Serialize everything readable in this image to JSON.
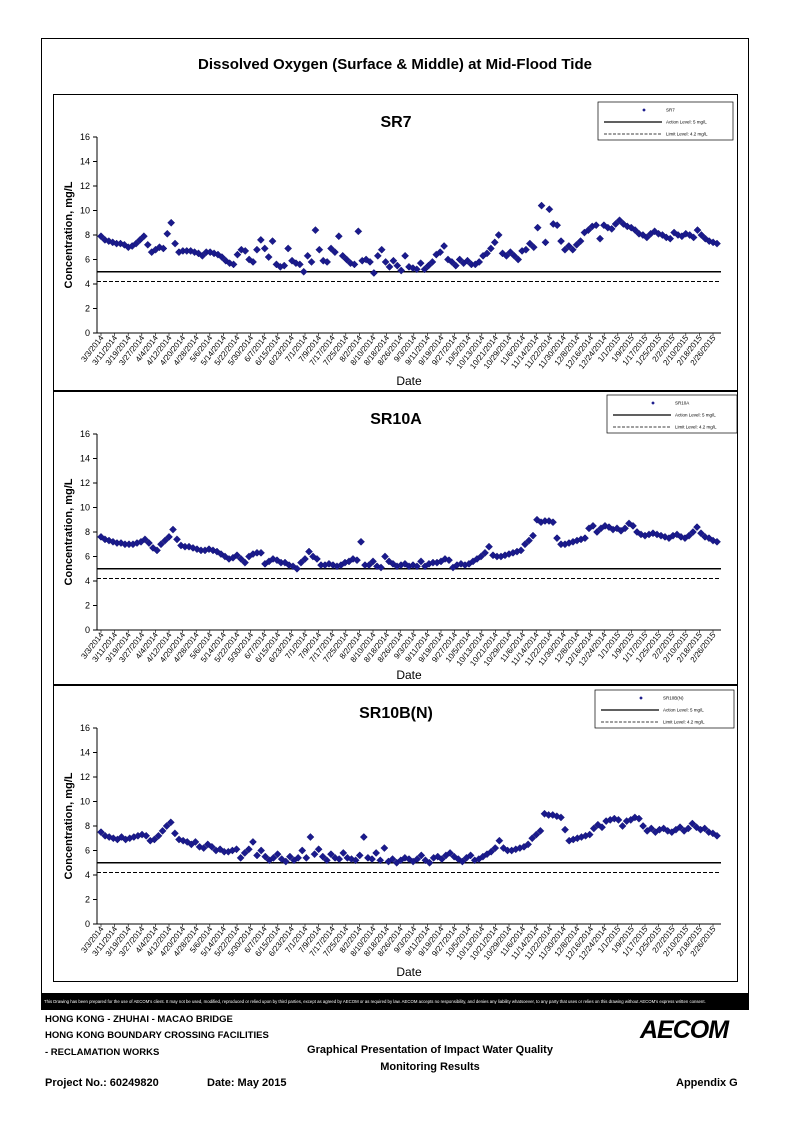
{
  "main_title": "Dissolved Oxygen (Surface & Middle) at Mid-Flood Tide",
  "disclaimer": "This Drawing has been prepared for the use of AECOM's client. It may not be used, modified, reproduced or relied upon by third parties, except as agreed by AECOM or as required by law. AECOM accepts no responsibility, and denies any liability whatsoever, to any party that uses or relies on this drawing without AECOM's express written consent.",
  "footer": {
    "line1": "HONG KONG - ZHUHAI - MACAO BRIDGE",
    "line2": "HONG KONG BOUNDARY CROSSING FACILITIES",
    "line3": "- RECLAMATION WORKS",
    "center_line1": "Graphical Presentation of Impact Water Quality",
    "center_line2": "Monitoring Results",
    "logo": "AECOM",
    "project": "Project No.: 60249820",
    "date": "Date: May 2015",
    "appendix": "Appendix G"
  },
  "chart_data": [
    {
      "type": "scatter",
      "title": "SR7",
      "xlabel": "Date",
      "ylabel": "Concentration, mg/L",
      "ylim": [
        0,
        16
      ],
      "yticks": [
        0,
        2,
        4,
        6,
        8,
        10,
        12,
        14,
        16
      ],
      "xticks": [
        "3/3/2014",
        "3/11/2014",
        "3/19/2014",
        "3/27/2014",
        "4/4/2014",
        "4/12/2014",
        "4/20/2014",
        "4/28/2014",
        "5/6/2014",
        "5/14/2014",
        "5/22/2014",
        "5/30/2014",
        "6/7/2014",
        "6/15/2014",
        "6/23/2014",
        "7/1/2014",
        "7/9/2014",
        "7/17/2014",
        "7/25/2014",
        "8/2/2014",
        "8/10/2014",
        "8/18/2014",
        "8/26/2014",
        "9/3/2014",
        "9/11/2014",
        "9/19/2014",
        "9/27/2014",
        "10/5/2014",
        "10/13/2014",
        "10/21/2014",
        "10/29/2014",
        "11/6/2014",
        "11/14/2014",
        "11/22/2014",
        "11/30/2014",
        "12/8/2014",
        "12/16/2014",
        "12/24/2014",
        "1/1/2015",
        "1/9/2015",
        "1/17/2015",
        "1/25/2015",
        "2/2/2015",
        "2/10/2015",
        "2/18/2015",
        "2/26/2015"
      ],
      "legend": [
        "SR7",
        "Action Level: 5 mg/L",
        "Limit Level: 4.2 mg/L"
      ],
      "legend_position": "top-right",
      "action_level": 5,
      "limit_level": 4.2,
      "series": [
        {
          "name": "SR7",
          "values": [
            7.9,
            7.6,
            7.5,
            7.4,
            7.3,
            7.3,
            7.2,
            7.0,
            7.1,
            7.3,
            7.6,
            7.9,
            7.2,
            6.6,
            6.8,
            7.0,
            6.9,
            8.1,
            9.0,
            7.3,
            6.6,
            6.7,
            6.7,
            6.7,
            6.6,
            6.5,
            6.3,
            6.6,
            6.6,
            6.5,
            6.4,
            6.2,
            5.9,
            5.7,
            5.6,
            6.4,
            6.8,
            6.7,
            6.0,
            5.8,
            6.8,
            7.6,
            6.9,
            6.2,
            7.5,
            5.6,
            5.4,
            5.5,
            6.9,
            5.9,
            5.7,
            5.6,
            5.0,
            6.3,
            5.8,
            8.4,
            6.8,
            5.9,
            5.8,
            6.9,
            6.6,
            7.9,
            6.3,
            6.0,
            5.7,
            5.6,
            8.3,
            5.9,
            6.0,
            5.8,
            4.9,
            6.3,
            6.8,
            5.8,
            5.4,
            5.9,
            5.5,
            5.1,
            6.3,
            5.4,
            5.3,
            5.2,
            5.7,
            5.2,
            5.5,
            5.8,
            6.4,
            6.6,
            7.1,
            6.0,
            5.8,
            5.5,
            6.0,
            5.7,
            5.9,
            5.6,
            5.6,
            5.8,
            6.3,
            6.5,
            6.9,
            7.4,
            8.0,
            6.5,
            6.3,
            6.6,
            6.3,
            6.0,
            6.7,
            6.8,
            7.3,
            7.0,
            8.6,
            10.4,
            7.4,
            10.1,
            8.9,
            8.8,
            7.5,
            6.8,
            7.1,
            6.8,
            7.2,
            7.5,
            8.2,
            8.4,
            8.7,
            8.8,
            7.7,
            8.8,
            8.6,
            8.5,
            8.9,
            9.2,
            8.9,
            8.7,
            8.6,
            8.4,
            8.1,
            8.0,
            7.8,
            8.1,
            8.3,
            8.1,
            8.0,
            7.8,
            7.7,
            8.2,
            8.0,
            7.9,
            8.1,
            8.0,
            7.8,
            8.4,
            8.0,
            7.7,
            7.5,
            7.4,
            7.3
          ]
        }
      ]
    },
    {
      "type": "scatter",
      "title": "SR10A",
      "xlabel": "Date",
      "ylabel": "Concentration, mg/L",
      "ylim": [
        0,
        16
      ],
      "yticks": [
        0,
        2,
        4,
        6,
        8,
        10,
        12,
        14,
        16
      ],
      "xticks": [
        "3/3/2014",
        "3/11/2014",
        "3/19/2014",
        "3/27/2014",
        "4/4/2014",
        "4/12/2014",
        "4/20/2014",
        "4/28/2014",
        "5/6/2014",
        "5/14/2014",
        "5/22/2014",
        "5/30/2014",
        "6/7/2014",
        "6/15/2014",
        "6/23/2014",
        "7/1/2014",
        "7/9/2014",
        "7/17/2014",
        "7/25/2014",
        "8/2/2014",
        "8/10/2014",
        "8/18/2014",
        "8/26/2014",
        "9/3/2014",
        "9/11/2014",
        "9/19/2014",
        "9/27/2014",
        "10/5/2014",
        "10/13/2014",
        "10/21/2014",
        "10/29/2014",
        "11/6/2014",
        "11/14/2014",
        "11/22/2014",
        "11/30/2014",
        "12/8/2014",
        "12/16/2014",
        "12/24/2014",
        "1/1/2015",
        "1/9/2015",
        "1/17/2015",
        "1/25/2015",
        "2/2/2015",
        "2/10/2015",
        "2/18/2015",
        "2/26/2015"
      ],
      "legend": [
        "SR10A",
        "Action Level: 5 mg/L",
        "Limit Level: 4.2 mg/L"
      ],
      "legend_position": "top-right",
      "action_level": 5,
      "limit_level": 4.2,
      "series": [
        {
          "name": "SR10A",
          "values": [
            7.6,
            7.4,
            7.3,
            7.2,
            7.1,
            7.1,
            7.0,
            7.0,
            7.0,
            7.1,
            7.2,
            7.4,
            7.1,
            6.7,
            6.5,
            7.0,
            7.3,
            7.6,
            8.2,
            7.4,
            6.9,
            6.8,
            6.8,
            6.7,
            6.6,
            6.5,
            6.5,
            6.6,
            6.5,
            6.4,
            6.2,
            6.0,
            5.8,
            5.9,
            6.1,
            5.8,
            5.5,
            6.0,
            6.2,
            6.3,
            6.3,
            5.4,
            5.6,
            5.8,
            5.7,
            5.5,
            5.5,
            5.3,
            5.2,
            5.0,
            5.5,
            5.8,
            6.4,
            6.0,
            5.8,
            5.3,
            5.3,
            5.4,
            5.3,
            5.2,
            5.3,
            5.5,
            5.6,
            5.8,
            5.7,
            7.2,
            5.3,
            5.3,
            5.6,
            5.2,
            5.1,
            6.0,
            5.6,
            5.4,
            5.2,
            5.3,
            5.4,
            5.2,
            5.3,
            5.2,
            5.6,
            5.2,
            5.4,
            5.5,
            5.5,
            5.6,
            5.8,
            5.7,
            5.1,
            5.3,
            5.4,
            5.3,
            5.4,
            5.6,
            5.8,
            6.0,
            6.3,
            6.8,
            6.1,
            6.0,
            6.0,
            6.1,
            6.2,
            6.3,
            6.4,
            6.5,
            7.0,
            7.3,
            7.7,
            9.0,
            8.8,
            8.9,
            8.9,
            8.8,
            7.5,
            7.0,
            7.0,
            7.1,
            7.2,
            7.3,
            7.4,
            7.5,
            8.3,
            8.5,
            8.0,
            8.3,
            8.5,
            8.4,
            8.2,
            8.3,
            8.1,
            8.3,
            8.7,
            8.5,
            8.0,
            7.8,
            7.7,
            7.8,
            7.9,
            7.8,
            7.7,
            7.6,
            7.5,
            7.7,
            7.8,
            7.6,
            7.5,
            7.7,
            8.0,
            8.4,
            7.9,
            7.6,
            7.5,
            7.3,
            7.2
          ]
        }
      ]
    },
    {
      "type": "scatter",
      "title": "SR10B(N)",
      "xlabel": "Date",
      "ylabel": "Concentration, mg/L",
      "ylim": [
        0,
        16
      ],
      "yticks": [
        0,
        2,
        4,
        6,
        8,
        10,
        12,
        14,
        16
      ],
      "xticks": [
        "3/3/2014",
        "3/11/2014",
        "3/19/2014",
        "3/27/2014",
        "4/4/2014",
        "4/12/2014",
        "4/20/2014",
        "4/28/2014",
        "5/6/2014",
        "5/14/2014",
        "5/22/2014",
        "5/30/2014",
        "6/7/2014",
        "6/15/2014",
        "6/23/2014",
        "7/1/2014",
        "7/9/2014",
        "7/17/2014",
        "7/25/2014",
        "8/2/2014",
        "8/10/2014",
        "8/18/2014",
        "8/26/2014",
        "9/3/2014",
        "9/11/2014",
        "9/19/2014",
        "9/27/2014",
        "10/5/2014",
        "10/13/2014",
        "10/21/2014",
        "10/29/2014",
        "11/6/2014",
        "11/14/2014",
        "11/22/2014",
        "11/30/2014",
        "12/8/2014",
        "12/16/2014",
        "12/24/2014",
        "1/1/2015",
        "1/9/2015",
        "1/17/2015",
        "1/25/2015",
        "2/2/2015",
        "2/10/2015",
        "2/18/2015",
        "2/26/2015"
      ],
      "legend": [
        "SR10B(N)",
        "Action Level: 5 mg/L",
        "Limit Level: 4.2 mg/L"
      ],
      "legend_position": "top-right",
      "action_level": 5,
      "limit_level": 4.2,
      "series": [
        {
          "name": "SR10B(N)",
          "values": [
            7.5,
            7.2,
            7.1,
            7.0,
            6.9,
            7.1,
            6.9,
            7.0,
            7.1,
            7.2,
            7.3,
            7.2,
            6.8,
            6.9,
            7.2,
            7.6,
            8.0,
            8.3,
            7.4,
            6.9,
            6.8,
            6.7,
            6.5,
            6.7,
            6.3,
            6.2,
            6.5,
            6.3,
            6.0,
            6.1,
            5.9,
            5.9,
            6.0,
            6.1,
            5.4,
            5.8,
            6.1,
            6.7,
            5.6,
            6.0,
            5.5,
            5.2,
            5.4,
            5.7,
            5.3,
            5.1,
            5.5,
            5.2,
            5.4,
            6.0,
            5.4,
            7.1,
            5.7,
            6.1,
            5.5,
            5.2,
            5.7,
            5.4,
            5.3,
            5.8,
            5.4,
            5.3,
            5.2,
            5.6,
            7.1,
            5.4,
            5.3,
            5.8,
            5.2,
            6.2,
            5.1,
            5.3,
            5.0,
            5.2,
            5.4,
            5.3,
            5.1,
            5.3,
            5.6,
            5.2,
            5.0,
            5.4,
            5.5,
            5.3,
            5.6,
            5.8,
            5.5,
            5.3,
            5.1,
            5.4,
            5.6,
            5.2,
            5.3,
            5.5,
            5.7,
            5.9,
            6.2,
            6.8,
            6.2,
            6.0,
            6.0,
            6.1,
            6.2,
            6.3,
            6.5,
            7.0,
            7.3,
            7.6,
            9.0,
            8.9,
            8.9,
            8.8,
            8.7,
            7.7,
            6.8,
            6.9,
            7.0,
            7.1,
            7.2,
            7.3,
            7.8,
            8.1,
            7.9,
            8.4,
            8.5,
            8.6,
            8.5,
            8.0,
            8.4,
            8.5,
            8.7,
            8.6,
            8.0,
            7.6,
            7.8,
            7.5,
            7.7,
            7.8,
            7.6,
            7.5,
            7.7,
            7.9,
            7.6,
            7.8,
            8.2,
            7.9,
            7.7,
            7.8,
            7.5,
            7.4,
            7.2
          ]
        }
      ]
    }
  ]
}
